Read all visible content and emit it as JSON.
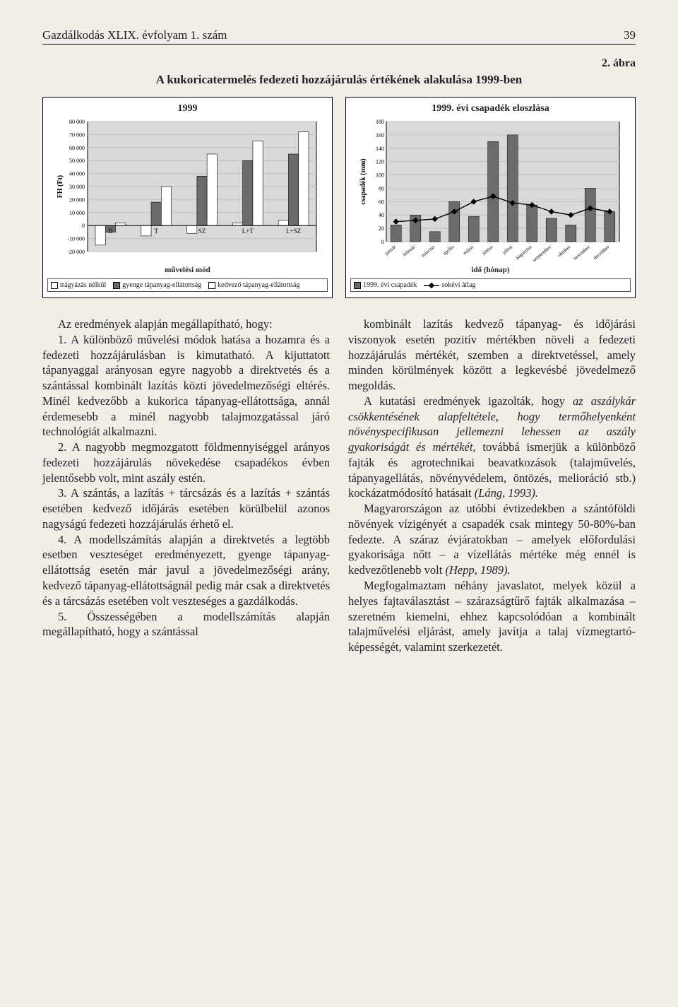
{
  "header": {
    "journal": "Gazdálkodás XLIX. évfolyam 1. szám",
    "page": "39"
  },
  "figure": {
    "label": "2. ábra",
    "caption": "A kukoricatermelés fedezeti hozzájárulás értékének alakulása 1999-ben"
  },
  "chart1": {
    "title": "1999",
    "type": "bar",
    "ylabel": "FH (Ft)",
    "xlabel": "művelési mód",
    "categories": [
      "D",
      "T",
      "SZ",
      "L+T",
      "L+SZ"
    ],
    "series": [
      {
        "name": "trágyázás nélkül",
        "values": [
          -15000,
          -8000,
          -6000,
          2000,
          4000
        ],
        "fill": "#ffffff"
      },
      {
        "name": "gyenge tápanyag-ellátottság",
        "values": [
          -5000,
          18000,
          38000,
          50000,
          55000
        ],
        "fill": "#6b6b6b"
      },
      {
        "name": "kedvező tápanyag-ellátottság",
        "values": [
          2000,
          30000,
          55000,
          65000,
          72000
        ],
        "fill": "#ffffff"
      }
    ],
    "ylim": [
      -20000,
      80000
    ],
    "ytick_step": 10000,
    "bg": "#d9d9d9",
    "grid": "#bfbfbf",
    "legend": [
      "trágyázás nélkül",
      "gyenge tápanyag-ellátottság",
      "kedvező tápanyag-ellátottság"
    ],
    "legend_fills": [
      "#ffffff",
      "#6b6b6b",
      "#ffffff"
    ]
  },
  "chart2": {
    "title": "1999. évi csapadék eloszlása",
    "type": "bar+line",
    "ylabel": "csapadék (mm)",
    "xlabel": "idő (hónap)",
    "categories": [
      "január",
      "február",
      "március",
      "április",
      "május",
      "június",
      "július",
      "augusztus",
      "szeptember",
      "október",
      "november",
      "december"
    ],
    "bars": {
      "name": "1999. évi csapadék",
      "values": [
        25,
        40,
        15,
        60,
        38,
        150,
        160,
        55,
        35,
        25,
        80,
        45
      ],
      "fill": "#6b6b6b"
    },
    "line": {
      "name": "sokévi átlag",
      "values": [
        30,
        32,
        34,
        45,
        60,
        68,
        58,
        55,
        45,
        40,
        50,
        45
      ],
      "stroke": "#000000",
      "marker": "diamond"
    },
    "ylim": [
      0,
      180
    ],
    "ytick_step": 20,
    "bg": "#d9d9d9",
    "grid": "#bfbfbf",
    "legend": [
      "1999. évi csapadék",
      "sokévi átlag"
    ]
  },
  "body": {
    "left": [
      "Az eredmények alapján megállapítható, hogy:",
      "1. A különböző művelési módok hatása a hozamra és a fedezeti hozzájárulásban is kimutatható. A kijuttatott tápanyaggal arányosan egyre nagyobb a direktvetés és a szántással kombinált lazítás közti jövedelmezőségi eltérés. Minél kedvezőbb a kukorica tápanyag-ellátottsága, annál érdemesebb a minél nagyobb talajmozgatással járó technológiát alkalmazni.",
      "2. A nagyobb megmozgatott földmennyiséggel arányos fedezeti hozzájárulás növekedése csapadékos évben jelentősebb volt, mint aszály estén.",
      "3. A szántás, a lazítás + tárcsázás és a lazítás + szántás esetében kedvező időjárás esetében körülbelül azonos nagyságú fedezeti hozzájárulás érhető el.",
      "4. A modellszámítás alapján a direktvetés a legtöbb esetben veszteséget eredményezett, gyenge tápanyag-ellátottság esetén már javul a jövedelmezőségi arány, kedvező tápanyag-ellátottságnál pedig már csak a direktvetés és a tárcsázás esetében volt veszteséges a gazdálkodás.",
      "5. Összességében a modellszámítás alapján megállapítható, hogy a szántással"
    ],
    "right": [
      "kombinált lazítás kedvező tápanyag- és időjárási viszonyok esetén pozitív mértékben növeli a fedezeti hozzájárulás mértékét, szemben a direktvetéssel, amely minden körülmények között a legkevésbé jövedelmező megoldás.",
      "A kutatási eredmények igazolták, hogy <em>az aszálykár csökkentésének alapfeltétele, hogy termőhelyenként növényspecifikusan jellemezni lehessen az aszály gyakoriságát és mértékét,</em> továbbá ismerjük a különböző fajták és agrotechnikai beavatkozások (talajművelés, tápanyagellátás, növényvédelem, öntözés, melioráció stb.) kockázatmódosító hatásait <em>(Láng, 1993).</em>",
      "Magyarországon az utóbbi évtizedekben a szántóföldi növények vízigényét a csapadék csak mintegy 50-80%-ban fedezte. A száraz évjáratokban – amelyek előfordulási gyakorisága nőtt – a vízellátás mértéke még ennél is kedvezőtlenebb volt <em>(Hepp, 1989).</em>",
      "Megfogalmaztam néhány javaslatot, melyek közül a helyes fajtaválasztást – szárazságtűrő fajták alkalmazása – szeretném kiemelni, ehhez kapcsolódóan a kombinált talajművelési eljárást, amely javítja a talaj vízmegtartó-képességét, valamint szerkezetét."
    ]
  }
}
